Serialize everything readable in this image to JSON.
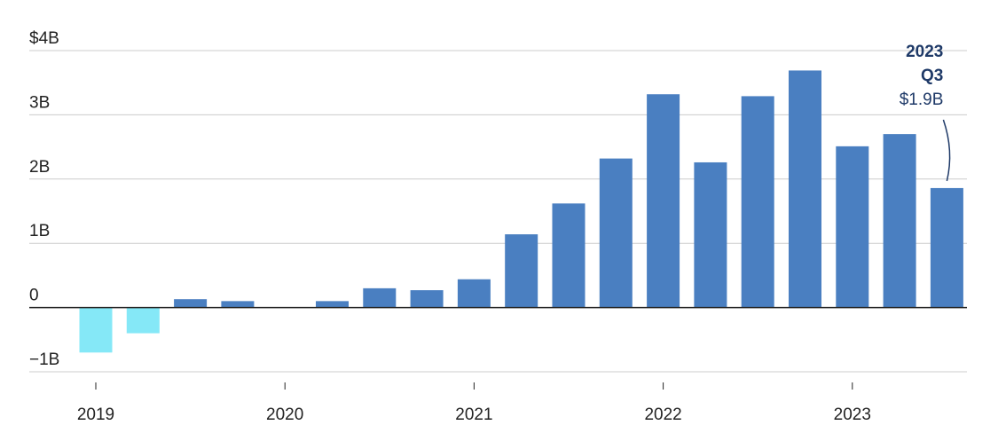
{
  "chart_data": {
    "type": "bar",
    "categories": [
      "2019",
      null,
      null,
      null,
      "2020",
      null,
      null,
      null,
      "2021",
      null,
      null,
      null,
      "2022",
      null,
      null,
      null,
      "2023",
      null,
      null
    ],
    "values": [
      -0.7,
      -0.4,
      0.13,
      0.1,
      0,
      0.1,
      0.3,
      0.27,
      0.44,
      1.14,
      1.62,
      2.32,
      3.32,
      2.26,
      3.29,
      3.69,
      2.51,
      2.7,
      1.86
    ],
    "value_labels": [
      null,
      null,
      null,
      null,
      null,
      null,
      null,
      null,
      null,
      null,
      null,
      null,
      null,
      null,
      null,
      null,
      null,
      null,
      "$1.9B"
    ],
    "annotation": [
      "2023",
      "Q3"
    ],
    "color": "#4a7fc1",
    "negative_color": "#85e8f7",
    "ylim": [
      -1,
      4
    ],
    "yticks": [
      {
        "value": -1,
        "label": "−1B"
      },
      0,
      {
        "value": 1,
        "label": "1B"
      },
      {
        "value": 2,
        "label": "2B"
      },
      {
        "value": 3,
        "label": "3B"
      },
      {
        "value": 4,
        "label": "$4B"
      }
    ],
    "grid": true
  }
}
